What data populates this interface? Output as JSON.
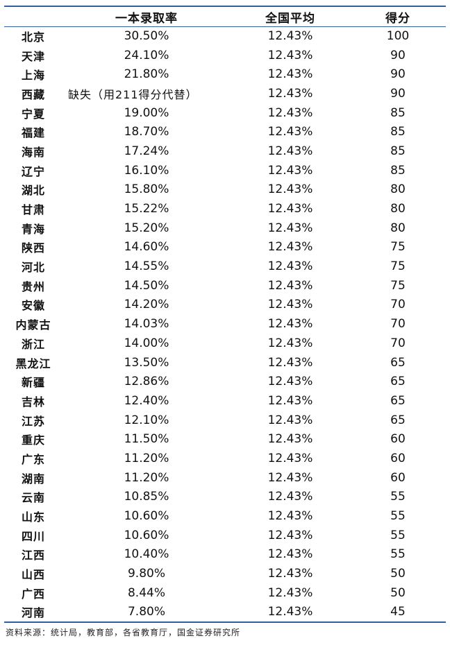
{
  "table": {
    "headers": [
      "",
      "一本录取率",
      "全国平均",
      "得分"
    ],
    "rows": [
      [
        "北京",
        "30.50%",
        "12.43%",
        "100"
      ],
      [
        "天津",
        "24.10%",
        "12.43%",
        "90"
      ],
      [
        "上海",
        "21.80%",
        "12.43%",
        "90"
      ],
      [
        "西藏",
        "缺失（用211得分代替）",
        "12.43%",
        "90"
      ],
      [
        "宁夏",
        "19.00%",
        "12.43%",
        "85"
      ],
      [
        "福建",
        "18.70%",
        "12.43%",
        "85"
      ],
      [
        "海南",
        "17.24%",
        "12.43%",
        "85"
      ],
      [
        "辽宁",
        "16.10%",
        "12.43%",
        "85"
      ],
      [
        "湖北",
        "15.80%",
        "12.43%",
        "80"
      ],
      [
        "甘肃",
        "15.22%",
        "12.43%",
        "80"
      ],
      [
        "青海",
        "15.20%",
        "12.43%",
        "80"
      ],
      [
        "陕西",
        "14.60%",
        "12.43%",
        "75"
      ],
      [
        "河北",
        "14.55%",
        "12.43%",
        "75"
      ],
      [
        "贵州",
        "14.50%",
        "12.43%",
        "75"
      ],
      [
        "安徽",
        "14.20%",
        "12.43%",
        "70"
      ],
      [
        "内蒙古",
        "14.03%",
        "12.43%",
        "70"
      ],
      [
        "浙江",
        "14.00%",
        "12.43%",
        "70"
      ],
      [
        "黑龙江",
        "13.50%",
        "12.43%",
        "65"
      ],
      [
        "新疆",
        "12.86%",
        "12.43%",
        "65"
      ],
      [
        "吉林",
        "12.40%",
        "12.43%",
        "65"
      ],
      [
        "江苏",
        "12.10%",
        "12.43%",
        "65"
      ],
      [
        "重庆",
        "11.50%",
        "12.43%",
        "60"
      ],
      [
        "广东",
        "11.20%",
        "12.43%",
        "60"
      ],
      [
        "湖南",
        "11.20%",
        "12.43%",
        "60"
      ],
      [
        "云南",
        "10.85%",
        "12.43%",
        "55"
      ],
      [
        "山东",
        "10.60%",
        "12.43%",
        "55"
      ],
      [
        "四川",
        "10.60%",
        "12.43%",
        "55"
      ],
      [
        "江西",
        "10.40%",
        "12.43%",
        "55"
      ],
      [
        "山西",
        "9.80%",
        "12.43%",
        "50"
      ],
      [
        "广西",
        "8.44%",
        "12.43%",
        "50"
      ],
      [
        "河南",
        "7.80%",
        "12.43%",
        "45"
      ]
    ]
  },
  "source": "资料来源：统计局，教育部，各省教育厅，国金证券研究所",
  "colors": {
    "rule": "#2f5f9e"
  }
}
